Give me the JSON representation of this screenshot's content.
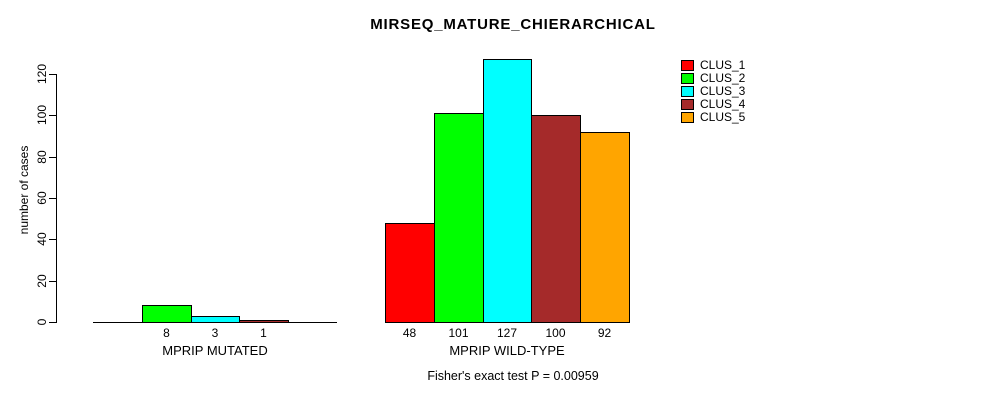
{
  "chart_data": {
    "type": "bar",
    "title": "MIRSEQ_MATURE_CHIERARCHICAL",
    "ylabel": "number of cases",
    "footnote": "Fisher's exact test P = 0.00959",
    "yticks": [
      0,
      20,
      40,
      60,
      80,
      100,
      120
    ],
    "ylim": [
      0,
      130
    ],
    "grid": false,
    "background": "#FFFFFF",
    "axis_color": "#000000",
    "series": [
      "CLUS_1",
      "CLUS_2",
      "CLUS_3",
      "CLUS_4",
      "CLUS_5"
    ],
    "colors": [
      "#FF0000",
      "#00FF00",
      "#00FFFF",
      "#A52A2A",
      "#FFA500"
    ],
    "groups": [
      {
        "label": "MPRIP MUTATED",
        "values": [
          0,
          8,
          3,
          1,
          0
        ]
      },
      {
        "label": "MPRIP WILD-TYPE",
        "values": [
          48,
          101,
          127,
          100,
          92
        ]
      }
    ],
    "value_labels": [
      [
        "",
        "8",
        "3",
        "1",
        ""
      ],
      [
        "48",
        "101",
        "127",
        "100",
        "92"
      ]
    ],
    "legend": {
      "position": "topright",
      "entries": [
        {
          "label": "CLUS_1",
          "color": "#FF0000"
        },
        {
          "label": "CLUS_2",
          "color": "#00FF00"
        },
        {
          "label": "CLUS_3",
          "color": "#00FFFF"
        },
        {
          "label": "CLUS_4",
          "color": "#A52A2A"
        },
        {
          "label": "CLUS_5",
          "color": "#FFA500"
        }
      ]
    }
  }
}
